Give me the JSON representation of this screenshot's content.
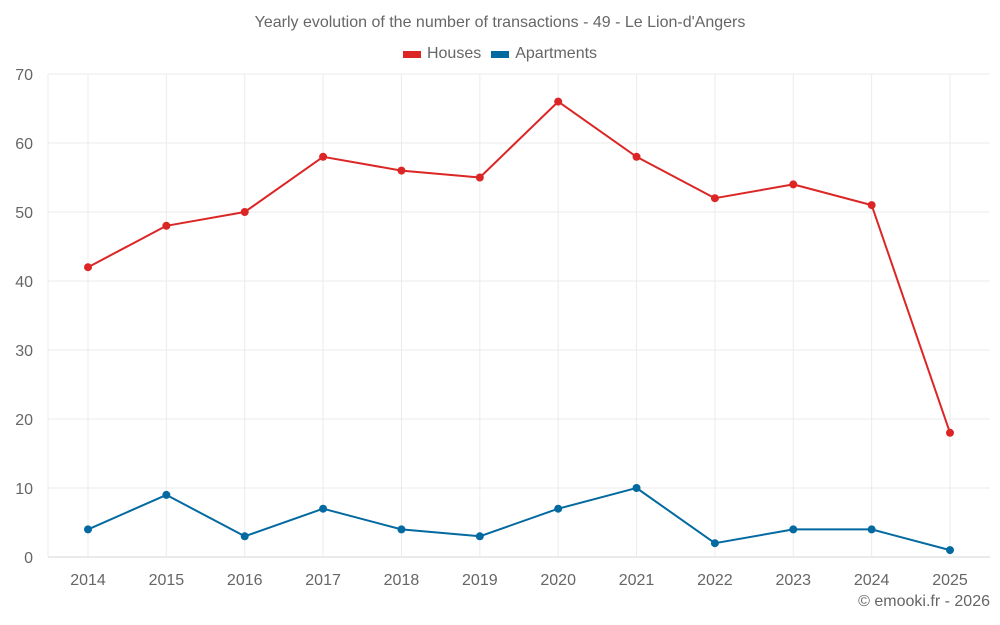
{
  "chart_data": {
    "type": "line",
    "title": "Yearly evolution of the number of transactions - 49 - Le Lion-d'Angers",
    "xlabel": "",
    "ylabel": "",
    "categories": [
      "2014",
      "2015",
      "2016",
      "2017",
      "2018",
      "2019",
      "2020",
      "2021",
      "2022",
      "2023",
      "2024",
      "2025"
    ],
    "series": [
      {
        "name": "Houses",
        "color": "#dc2626",
        "values": [
          42,
          48,
          50,
          58,
          56,
          55,
          66,
          58,
          52,
          54,
          51,
          18
        ]
      },
      {
        "name": "Apartments",
        "color": "#0369a1",
        "values": [
          4,
          9,
          3,
          7,
          4,
          3,
          7,
          10,
          2,
          4,
          4,
          1
        ]
      }
    ],
    "ylim": [
      0,
      70
    ],
    "yticks": [
      0,
      10,
      20,
      30,
      40,
      50,
      60,
      70
    ],
    "grid": true,
    "legend_position": "top-center"
  },
  "footer": "© emooki.fr - 2026"
}
